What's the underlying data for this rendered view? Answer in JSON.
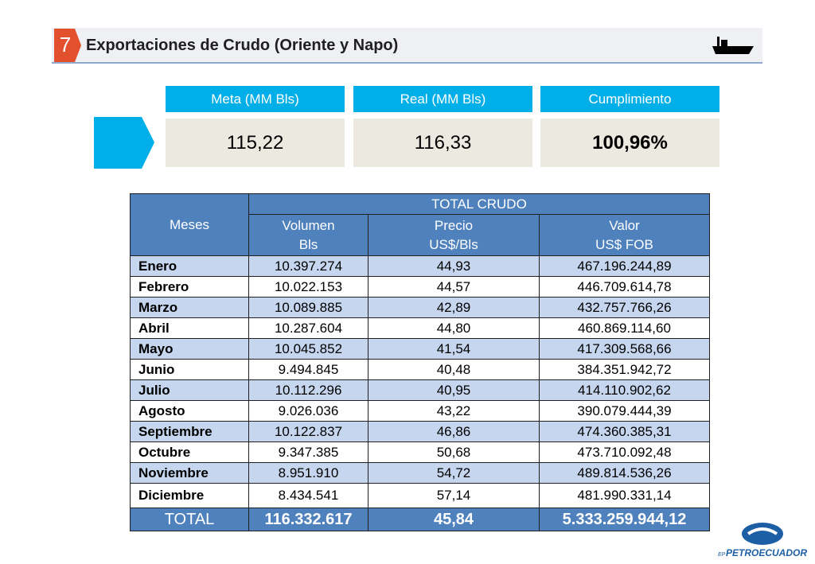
{
  "header": {
    "number": "7",
    "title": "Exportaciones de Crudo (Oriente y Napo)"
  },
  "kpis": [
    {
      "label": "Meta (MM Bls)",
      "value": "115,22"
    },
    {
      "label": "Real (MM Bls)",
      "value": "116,33"
    },
    {
      "label": "Cumplimiento",
      "value": "100,96%"
    }
  ],
  "table": {
    "row_header": "Meses",
    "group_header": "TOTAL CRUDO",
    "columns": [
      [
        "Volumen",
        "Bls"
      ],
      [
        "Precio",
        "US$/Bls"
      ],
      [
        "Valor",
        "US$ FOB"
      ]
    ],
    "rows": [
      [
        "Enero",
        "10.397.274",
        "44,93",
        "467.196.244,89"
      ],
      [
        "Febrero",
        "10.022.153",
        "44,57",
        "446.709.614,78"
      ],
      [
        "Marzo",
        "10.089.885",
        "42,89",
        "432.757.766,26"
      ],
      [
        "Abril",
        "10.287.604",
        "44,80",
        "460.869.114,60"
      ],
      [
        "Mayo",
        "10.045.852",
        "41,54",
        "417.309.568,66"
      ],
      [
        "Junio",
        "9.494.845",
        "40,48",
        "384.351.942,72"
      ],
      [
        "Julio",
        "10.112.296",
        "40,95",
        "414.110.902,62"
      ],
      [
        "Agosto",
        "9.026.036",
        "43,22",
        "390.079.444,39"
      ],
      [
        "Septiembre",
        "10.122.837",
        "46,86",
        "474.360.385,31"
      ],
      [
        "Octubre",
        "9.347.385",
        "50,68",
        "473.710.092,48"
      ],
      [
        "Noviembre",
        "8.951.910",
        "54,72",
        "489.814.536,26"
      ],
      [
        "Diciembre",
        "8.434.541",
        "57,14",
        "481.990.331,14"
      ]
    ],
    "total": [
      "TOTAL",
      "116.332.617",
      "45,84",
      "5.333.259.944,12"
    ]
  },
  "logo": {
    "prefix": "EP",
    "name": "PETROECUADOR"
  }
}
